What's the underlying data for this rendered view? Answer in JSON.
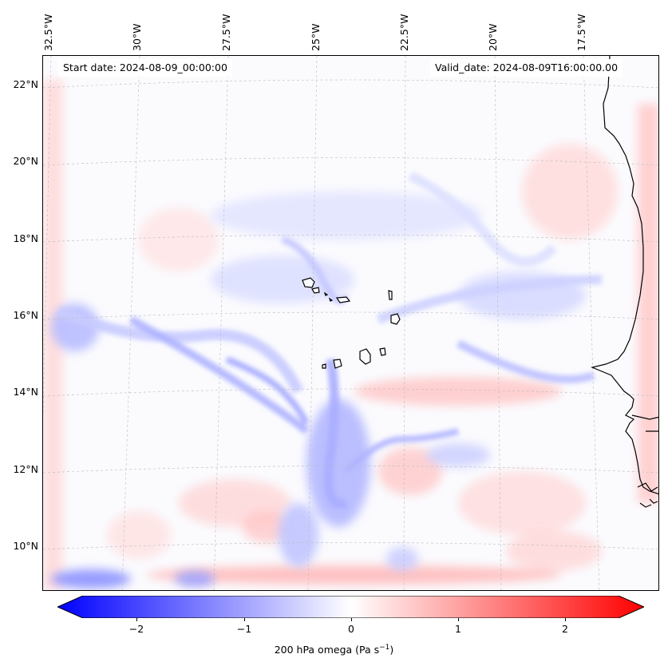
{
  "map": {
    "start_date": "Start date: 2024-08-09_00:00:00",
    "valid_date": "Valid_date: 2024-08-09T16:00:00.00",
    "longitude_labels": [
      "32.5°W",
      "30°W",
      "27.5°W",
      "25°W",
      "22.5°W",
      "20°W",
      "17.5°W"
    ],
    "latitude_labels": [
      "22°N",
      "20°N",
      "18°N",
      "16°N",
      "14°N",
      "12°N",
      "10°N"
    ],
    "variable": "200 hPa omega",
    "colors": {
      "negative": "#0000ff",
      "neutral": "#ffffff",
      "positive": "#ff0000",
      "coast": "#000000",
      "grid": "#bbbbbb"
    }
  },
  "colorbar": {
    "tick_labels": [
      "−2",
      "−1",
      "0",
      "1",
      "2"
    ],
    "label": "200 hPa omega (Pa s",
    "label_exp": "−1",
    "label_close": ")",
    "range": [
      -2.5,
      2.5
    ]
  }
}
